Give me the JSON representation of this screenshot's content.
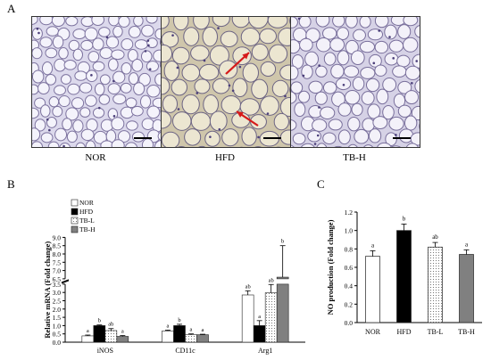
{
  "panels": {
    "a": {
      "letter": "A",
      "images": [
        {
          "label": "NOR",
          "arrows": false
        },
        {
          "label": "HFD",
          "arrows": true
        },
        {
          "label": "TB-H",
          "arrows": false
        }
      ]
    },
    "b": {
      "letter": "B"
    },
    "c": {
      "letter": "C"
    }
  },
  "chart_data": [
    {
      "type": "bar",
      "ylabel": "Relative mRNA (Fold change)",
      "categories": [
        "iNOS",
        "CD11c",
        "Arg1"
      ],
      "ylim": [
        0,
        9.0
      ],
      "axis_break": [
        3.5,
        6.5
      ],
      "yticks": [
        "0.0",
        "0.5",
        "1.0",
        "1.5",
        "2.0",
        "2.5",
        "3.0",
        "3.5",
        "6.5",
        "7.0",
        "7.5",
        "8.0",
        "8.5",
        "9.0"
      ],
      "legend": [
        "NOR",
        "HFD",
        "TB-L",
        "TB-H"
      ],
      "legend_placement": "top-left",
      "series": [
        {
          "name": "NOR",
          "values": [
            0.38,
            0.68,
            2.85
          ],
          "errors": [
            0.05,
            0.05,
            0.25
          ],
          "letters": [
            "a",
            "a",
            "ab"
          ],
          "fill": "#ffffff",
          "pattern": "none"
        },
        {
          "name": "HFD",
          "values": [
            1.0,
            1.0,
            1.0
          ],
          "errors": [
            0.04,
            0.08,
            0.3
          ],
          "letters": [
            "b",
            "b",
            "a"
          ],
          "fill": "#000000",
          "pattern": "none"
        },
        {
          "name": "TB-L",
          "values": [
            0.7,
            0.45,
            2.98
          ],
          "errors": [
            0.12,
            0.05,
            0.5
          ],
          "letters": [
            "ab",
            "a",
            "ab"
          ],
          "fill": "#ffffff",
          "pattern": "dots"
        },
        {
          "name": "TB-H",
          "values": [
            0.35,
            0.45,
            6.6
          ],
          "errors": [
            0.05,
            0.03,
            1.9
          ],
          "letters": [
            "a",
            "a",
            "b"
          ],
          "fill": "#808080",
          "pattern": "none"
        }
      ]
    },
    {
      "type": "bar",
      "ylabel": "NO production (Fold change)",
      "categories": [
        "NOR",
        "HFD",
        "TB-L",
        "TB-H"
      ],
      "ylim": [
        0,
        1.2
      ],
      "yticks": [
        "0.0",
        "0.2",
        "0.4",
        "0.6",
        "0.8",
        "1.0",
        "1.2"
      ],
      "values": [
        0.72,
        1.0,
        0.82,
        0.74
      ],
      "errors": [
        0.06,
        0.07,
        0.05,
        0.05
      ],
      "letters": [
        "a",
        "b",
        "ab",
        "a"
      ],
      "fills": [
        "#ffffff",
        "#000000",
        "#ffffff",
        "#808080"
      ],
      "patterns": [
        "none",
        "none",
        "dots",
        "none"
      ]
    }
  ]
}
